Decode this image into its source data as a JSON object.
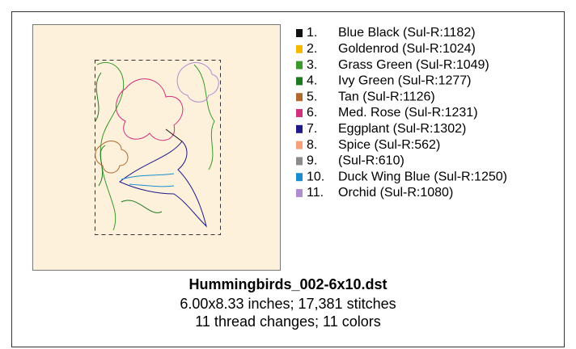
{
  "design": {
    "colors": [
      {
        "number": "1.",
        "name": "Blue Black (Sul-R:1182)",
        "color": "#111111"
      },
      {
        "number": "2.",
        "name": "Goldenrod (Sul-R:1024)",
        "color": "#f5b800"
      },
      {
        "number": "3.",
        "name": "Grass Green (Sul-R:1049)",
        "color": "#3a9a2a"
      },
      {
        "number": "4.",
        "name": "Ivy Green (Sul-R:1277)",
        "color": "#1f7a1f"
      },
      {
        "number": "5.",
        "name": "Tan (Sul-R:1126)",
        "color": "#b06a2e"
      },
      {
        "number": "6.",
        "name": "Med. Rose (Sul-R:1231)",
        "color": "#d0307c"
      },
      {
        "number": "7.",
        "name": "Eggplant (Sul-R:1302)",
        "color": "#1e1a8a"
      },
      {
        "number": "8.",
        "name": "Spice (Sul-R:562)",
        "color": "#f4a07a"
      },
      {
        "number": "9.",
        "name": "(Sul-R:610)",
        "color": "#8a8a8a"
      },
      {
        "number": "10.",
        "name": "Duck Wing Blue (Sul-R:1250)",
        "color": "#1a8ccc"
      },
      {
        "number": "11.",
        "name": "Orchid (Sul-R:1080)",
        "color": "#b08cd0"
      }
    ],
    "file_name": "Hummingbirds_002-6x10.dst",
    "size_info": "6.00x8.33 inches; 17,381 stitches",
    "thread_info": "11 thread changes; 11 colors"
  }
}
